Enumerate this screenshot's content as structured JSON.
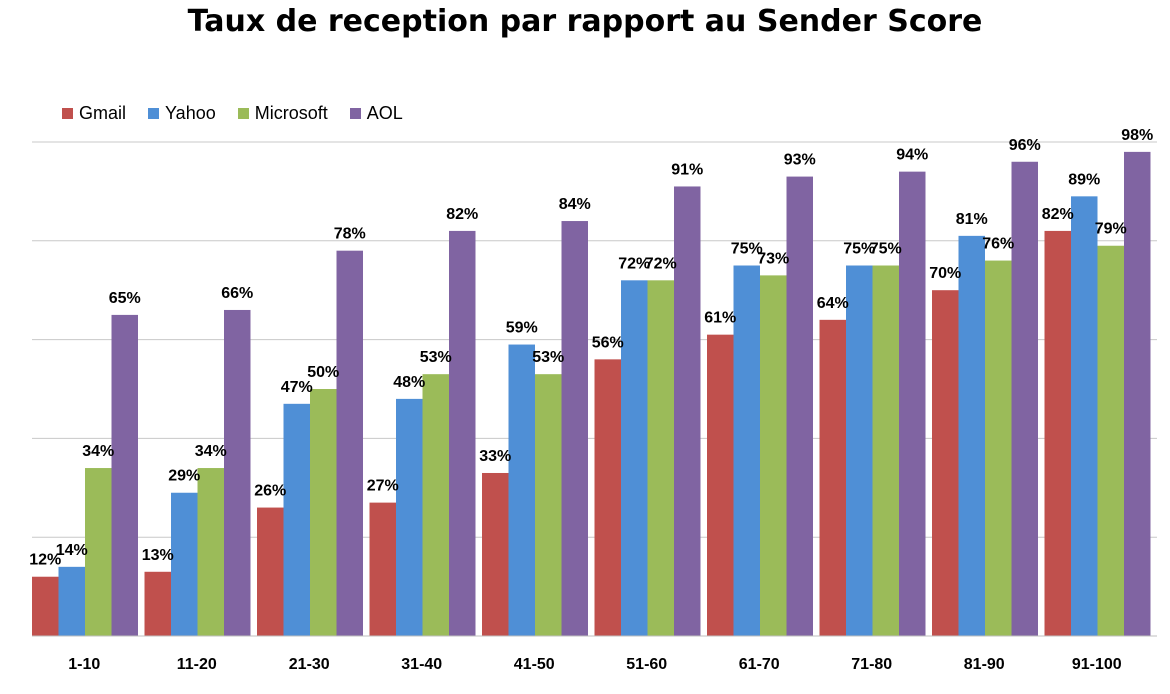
{
  "chart_data": {
    "type": "bar",
    "title": "Taux de reception par rapport au Sender Score",
    "xlabel": "",
    "ylabel": "",
    "ylim": [
      0,
      100
    ],
    "grid": true,
    "legend_position": "top-left",
    "categories": [
      "1-10",
      "11-20",
      "21-30",
      "31-40",
      "41-50",
      "51-60",
      "61-70",
      "71-80",
      "81-90",
      "91-100"
    ],
    "series": [
      {
        "name": "Gmail",
        "color": "#c0504d",
        "values": [
          12,
          13,
          26,
          27,
          33,
          56,
          61,
          64,
          70,
          82
        ]
      },
      {
        "name": "Yahoo",
        "color": "#4f8fd6",
        "values": [
          14,
          29,
          47,
          48,
          59,
          72,
          75,
          75,
          81,
          89
        ]
      },
      {
        "name": "Microsoft",
        "color": "#9bbb59",
        "values": [
          34,
          34,
          50,
          53,
          53,
          72,
          73,
          75,
          76,
          79
        ]
      },
      {
        "name": "AOL",
        "color": "#8064a2",
        "values": [
          65,
          66,
          78,
          82,
          84,
          91,
          93,
          94,
          96,
          98
        ]
      }
    ],
    "value_suffix": "%"
  }
}
